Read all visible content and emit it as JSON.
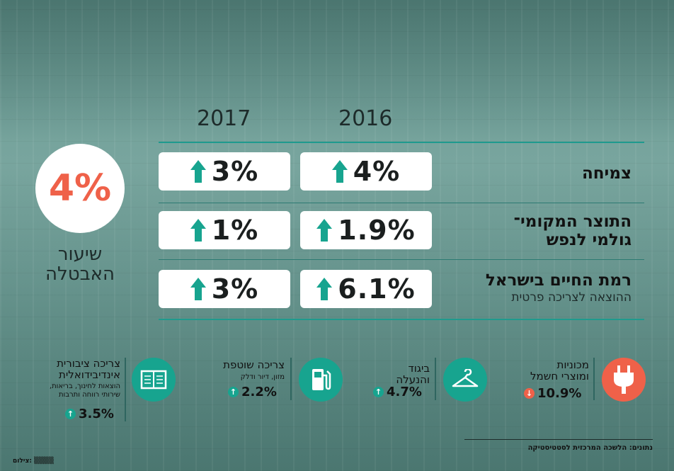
{
  "years": {
    "y2017": "2017",
    "y2016": "2016"
  },
  "rows": [
    {
      "label": "צמיחה",
      "sub": "",
      "v2017": "3%",
      "v2016": "4%"
    },
    {
      "label": "התוצר המקומי־",
      "label2": "גולמי לנפש",
      "sub": "",
      "v2017": "1%",
      "v2016": "1.9%"
    },
    {
      "label": "רמת החיים בישראל",
      "sub": "ההוצאה לצריכה פרטית",
      "v2017": "3%",
      "v2016": "6.1%"
    }
  ],
  "unemployment": {
    "value": "4%",
    "label_line1": "שיעור",
    "label_line2": "האבטלה"
  },
  "categories": [
    {
      "title1": "מכוניות",
      "title2": "ומוצרי חשמל",
      "value": "10.9%",
      "direction": "down",
      "icon": "plug-icon",
      "color": "#ef6149"
    },
    {
      "title1": "ביגוד",
      "title2": "והנעלה",
      "value": "4.7%",
      "direction": "up",
      "icon": "hanger-icon",
      "color": "#17a48f"
    },
    {
      "title1": "צריכה שוטפת",
      "sub": "מזון, דיור ודלק",
      "value": "2.2%",
      "direction": "up",
      "icon": "fuel-pump-icon",
      "color": "#17a48f"
    },
    {
      "title1": "צריכה ציבורית",
      "title2": "אינדיבידואלית",
      "sub1": "הוצאות לחינוך, בריאות,",
      "sub2": "שירותי רווחה ותרבות",
      "value": "3.5%",
      "direction": "up",
      "icon": "book-icon",
      "color": "#17a48f"
    }
  ],
  "source": "נתונים: הלשכה המרכזית לסטטיסטיקה",
  "credit": "צילום: ▒▒▒▒",
  "colors": {
    "accent": "#17a48f",
    "down": "#ef6149",
    "unemployment": "#ef6149"
  }
}
